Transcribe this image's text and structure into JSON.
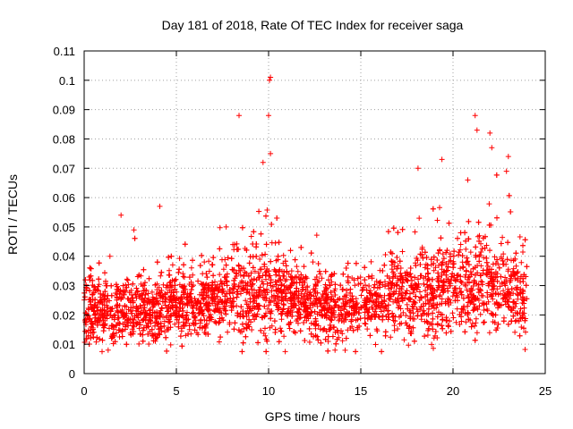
{
  "chart_data": {
    "type": "scatter",
    "title": "Day 181 of 2018, Rate Of TEC Index for receiver saga",
    "xlabel": "GPS time / hours",
    "ylabel": "ROTI / TECUs",
    "xlim": [
      0,
      25
    ],
    "ylim": [
      0,
      0.11
    ],
    "x_ticks": [
      "0",
      "5",
      "10",
      "15",
      "20",
      "25"
    ],
    "x_tick_values": [
      0,
      5,
      10,
      15,
      20,
      25
    ],
    "y_ticks": [
      "0",
      "0.01",
      "0.02",
      "0.03",
      "0.04",
      "0.05",
      "0.06",
      "0.07",
      "0.08",
      "0.09",
      "0.1",
      "0.11"
    ],
    "y_tick_values": [
      0,
      0.01,
      0.02,
      0.03,
      0.04,
      0.05,
      0.06,
      0.07,
      0.08,
      0.09,
      0.1,
      0.11
    ],
    "grid": true,
    "marker": "+",
    "color": "#ff0000",
    "series_name": "ROTI",
    "data_range": [
      0,
      24
    ],
    "baseline_trend": [
      [
        0,
        0.022
      ],
      [
        2,
        0.021
      ],
      [
        4,
        0.022
      ],
      [
        6,
        0.024
      ],
      [
        8,
        0.027
      ],
      [
        10,
        0.028
      ],
      [
        12,
        0.024
      ],
      [
        13.5,
        0.021
      ],
      [
        15,
        0.024
      ],
      [
        17,
        0.027
      ],
      [
        19,
        0.028
      ],
      [
        21,
        0.03
      ],
      [
        23,
        0.028
      ],
      [
        24,
        0.026
      ]
    ],
    "highlights": [
      {
        "x": 10.1,
        "y": 0.101
      },
      {
        "x": 10.05,
        "y": 0.1
      },
      {
        "x": 10.0,
        "y": 0.088
      },
      {
        "x": 8.4,
        "y": 0.088
      },
      {
        "x": 10.1,
        "y": 0.075
      },
      {
        "x": 9.7,
        "y": 0.072
      },
      {
        "x": 21.2,
        "y": 0.088
      },
      {
        "x": 21.3,
        "y": 0.083
      },
      {
        "x": 22.0,
        "y": 0.082
      },
      {
        "x": 22.1,
        "y": 0.077
      },
      {
        "x": 19.4,
        "y": 0.073
      },
      {
        "x": 23.0,
        "y": 0.074
      },
      {
        "x": 22.9,
        "y": 0.069
      },
      {
        "x": 18.1,
        "y": 0.07
      },
      {
        "x": 20.8,
        "y": 0.066
      },
      {
        "x": 4.1,
        "y": 0.057
      },
      {
        "x": 2.0,
        "y": 0.054
      },
      {
        "x": 2.7,
        "y": 0.049
      },
      {
        "x": 7.7,
        "y": 0.05
      },
      {
        "x": 1.4,
        "y": 0.04
      },
      {
        "x": 1.3,
        "y": 0.008
      },
      {
        "x": 13.6,
        "y": 0.008
      }
    ]
  }
}
